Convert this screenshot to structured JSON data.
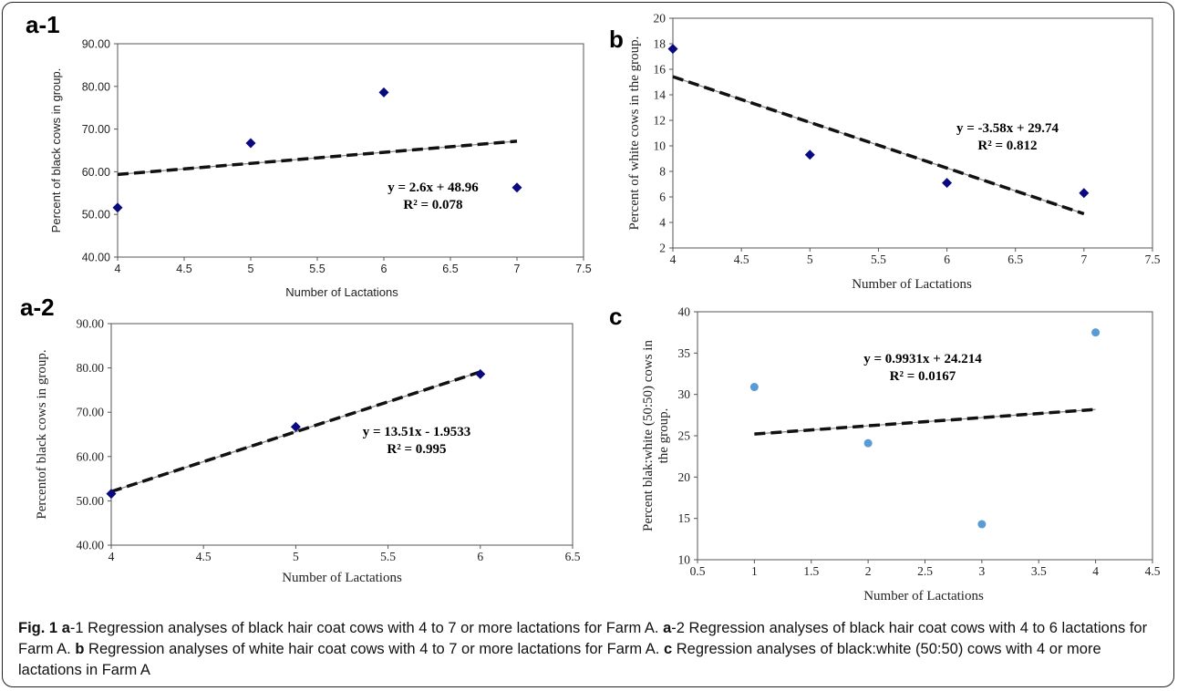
{
  "chart_data": [
    {
      "id": "a1",
      "panel_label": "a-1",
      "type": "scatter",
      "points": [
        [
          4,
          51.6
        ],
        [
          5,
          66.7
        ],
        [
          6,
          78.6
        ],
        [
          7,
          56.3
        ]
      ],
      "trend": {
        "slope": 2.6,
        "intercept": 48.96,
        "x_range": [
          4,
          7
        ]
      },
      "equation": "y = 2.6x + 48.96",
      "r2": "R² = 0.078",
      "xlabel": "Number of Lactations",
      "ylabel": "Percent of black cows in group.",
      "xlim": [
        4,
        7.5
      ],
      "ylim": [
        40,
        90
      ],
      "x_ticks": [
        "4",
        "4.5",
        "5",
        "5.5",
        "6",
        "6.5",
        "7",
        "7.5"
      ],
      "y_ticks": [
        "40.00",
        "50.00",
        "60.00",
        "70.00",
        "80.00",
        "90.00"
      ],
      "marker": "diamond",
      "marker_color": "#0a0a80",
      "grid": false
    },
    {
      "id": "a2",
      "panel_label": "a-2",
      "type": "scatter",
      "points": [
        [
          4,
          51.6
        ],
        [
          5,
          66.7
        ],
        [
          6,
          78.6
        ]
      ],
      "trend": {
        "slope": 13.51,
        "intercept": -1.9533,
        "x_range": [
          4,
          6
        ]
      },
      "equation": "y = 13.51x - 1.9533",
      "r2": "R² = 0.995",
      "xlabel": "Number of Lactations",
      "ylabel": "Percentof black cows in group.",
      "xlim": [
        4,
        6.5
      ],
      "ylim": [
        40,
        90
      ],
      "x_ticks": [
        "4",
        "4.5",
        "5",
        "5.5",
        "6",
        "6.5"
      ],
      "y_ticks": [
        "40.00",
        "50.00",
        "60.00",
        "70.00",
        "80.00",
        "90.00"
      ],
      "marker": "diamond",
      "marker_color": "#0a0a80",
      "grid": false
    },
    {
      "id": "b",
      "panel_label": "b",
      "type": "scatter",
      "points": [
        [
          4,
          17.6
        ],
        [
          5,
          9.3
        ],
        [
          6,
          7.1
        ],
        [
          7,
          6.3
        ]
      ],
      "trend": {
        "slope": -3.58,
        "intercept": 29.74,
        "x_range": [
          4,
          7
        ]
      },
      "equation": "y = -3.58x + 29.74",
      "r2": "R² = 0.812",
      "xlabel": "Number of Lactations",
      "ylabel": "Percent of white cows in the group.",
      "xlim": [
        4,
        7.5
      ],
      "ylim": [
        2,
        20
      ],
      "x_ticks": [
        "4",
        "4.5",
        "5",
        "5.5",
        "6",
        "6.5",
        "7",
        "7.5"
      ],
      "y_ticks": [
        "2",
        "4",
        "6",
        "8",
        "10",
        "12",
        "14",
        "16",
        "18",
        "20"
      ],
      "marker": "diamond",
      "marker_color": "#0a0a80",
      "grid": false
    },
    {
      "id": "c",
      "panel_label": "c",
      "type": "scatter",
      "points": [
        [
          1,
          30.9
        ],
        [
          2,
          24.1
        ],
        [
          3,
          14.3
        ],
        [
          4,
          37.5
        ]
      ],
      "trend": {
        "slope": 0.9931,
        "intercept": 24.214,
        "x_range": [
          1,
          4
        ]
      },
      "equation": "y = 0.9931x + 24.214",
      "r2": "R² = 0.0167",
      "xlabel": "Number of Lactations",
      "ylabel": "Percent blak:white (50:50) cows in the group.",
      "xlim": [
        0.5,
        4.5
      ],
      "ylim": [
        10,
        40
      ],
      "x_ticks": [
        "0.5",
        "1",
        "1.5",
        "2",
        "2.5",
        "3",
        "3.5",
        "4",
        "4.5"
      ],
      "y_ticks": [
        "10",
        "15",
        "20",
        "25",
        "30",
        "35",
        "40"
      ],
      "marker": "circle",
      "marker_color": "#5b9bd5",
      "grid": false
    }
  ],
  "caption": {
    "figure_label": "Fig. 1",
    "segments": [
      {
        "bold": "a",
        "text": "-1 Regression analyses of black hair coat cows with 4 to 7 or more lactations for Farm A. "
      },
      {
        "bold": "a",
        "text": "-2 Regression analyses of black hair coat cows with 4 to 6 lactations for Farm A. "
      },
      {
        "bold": "b",
        "text": " Regression analyses of white hair coat cows with 4 to 7 or more lactations for Farm A. "
      },
      {
        "bold": "c",
        "text": " Regression analyses of black:white (50:50) cows with 4 or more lactations in Farm A"
      }
    ]
  }
}
